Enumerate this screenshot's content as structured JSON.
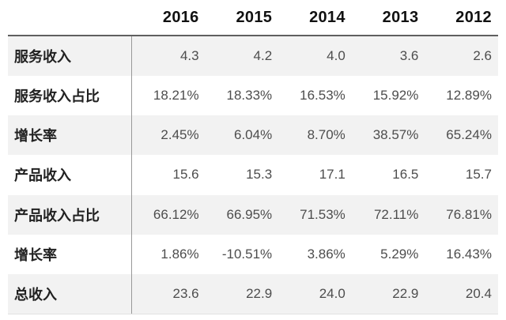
{
  "table": {
    "columns": [
      "2016",
      "2015",
      "2014",
      "2013",
      "2012"
    ],
    "rows": [
      {
        "label": "服务收入",
        "values": [
          "4.3",
          "4.2",
          "4.0",
          "3.6",
          "2.6"
        ]
      },
      {
        "label": "服务收入占比",
        "values": [
          "18.21%",
          "18.33%",
          "16.53%",
          "15.92%",
          "12.89%"
        ]
      },
      {
        "label": "增长率",
        "values": [
          "2.45%",
          "6.04%",
          "8.70%",
          "38.57%",
          "65.24%"
        ]
      },
      {
        "label": "产品收入",
        "values": [
          "15.6",
          "15.3",
          "17.1",
          "16.5",
          "15.7"
        ]
      },
      {
        "label": "产品收入占比",
        "values": [
          "66.12%",
          "66.95%",
          "71.53%",
          "72.11%",
          "76.81%"
        ]
      },
      {
        "label": "增长率",
        "values": [
          "1.86%",
          "-10.51%",
          "3.86%",
          "5.29%",
          "16.43%"
        ]
      },
      {
        "label": "总收入",
        "values": [
          "23.6",
          "22.9",
          "24.0",
          "22.9",
          "20.4"
        ]
      }
    ]
  },
  "colors": {
    "row_stripe": "#f2f2f2",
    "column_divider": "#999999",
    "header_border": "#5f5f5f",
    "header_text": "#111111",
    "label_text": "#212121",
    "value_text": "#4d4d4d",
    "background": "#ffffff"
  },
  "chart_data": {
    "type": "table",
    "title": "",
    "columns": [
      "",
      "2016",
      "2015",
      "2014",
      "2013",
      "2012"
    ],
    "rows": [
      [
        "服务收入",
        4.3,
        4.2,
        4.0,
        3.6,
        2.6
      ],
      [
        "服务收入占比",
        "18.21%",
        "18.33%",
        "16.53%",
        "15.92%",
        "12.89%"
      ],
      [
        "增长率",
        "2.45%",
        "6.04%",
        "8.70%",
        "38.57%",
        "65.24%"
      ],
      [
        "产品收入",
        15.6,
        15.3,
        17.1,
        16.5,
        15.7
      ],
      [
        "产品收入占比",
        "66.12%",
        "66.95%",
        "71.53%",
        "72.11%",
        "76.81%"
      ],
      [
        "增长率",
        "1.86%",
        "-10.51%",
        "3.86%",
        "5.29%",
        "16.43%"
      ],
      [
        "总收入",
        23.6,
        22.9,
        24.0,
        22.9,
        20.4
      ]
    ],
    "layout_hints": {
      "striped_rows": [
        1,
        3,
        5,
        7
      ],
      "value_alignment": "right",
      "label_column_divider": true,
      "header_alignment": "right"
    }
  }
}
